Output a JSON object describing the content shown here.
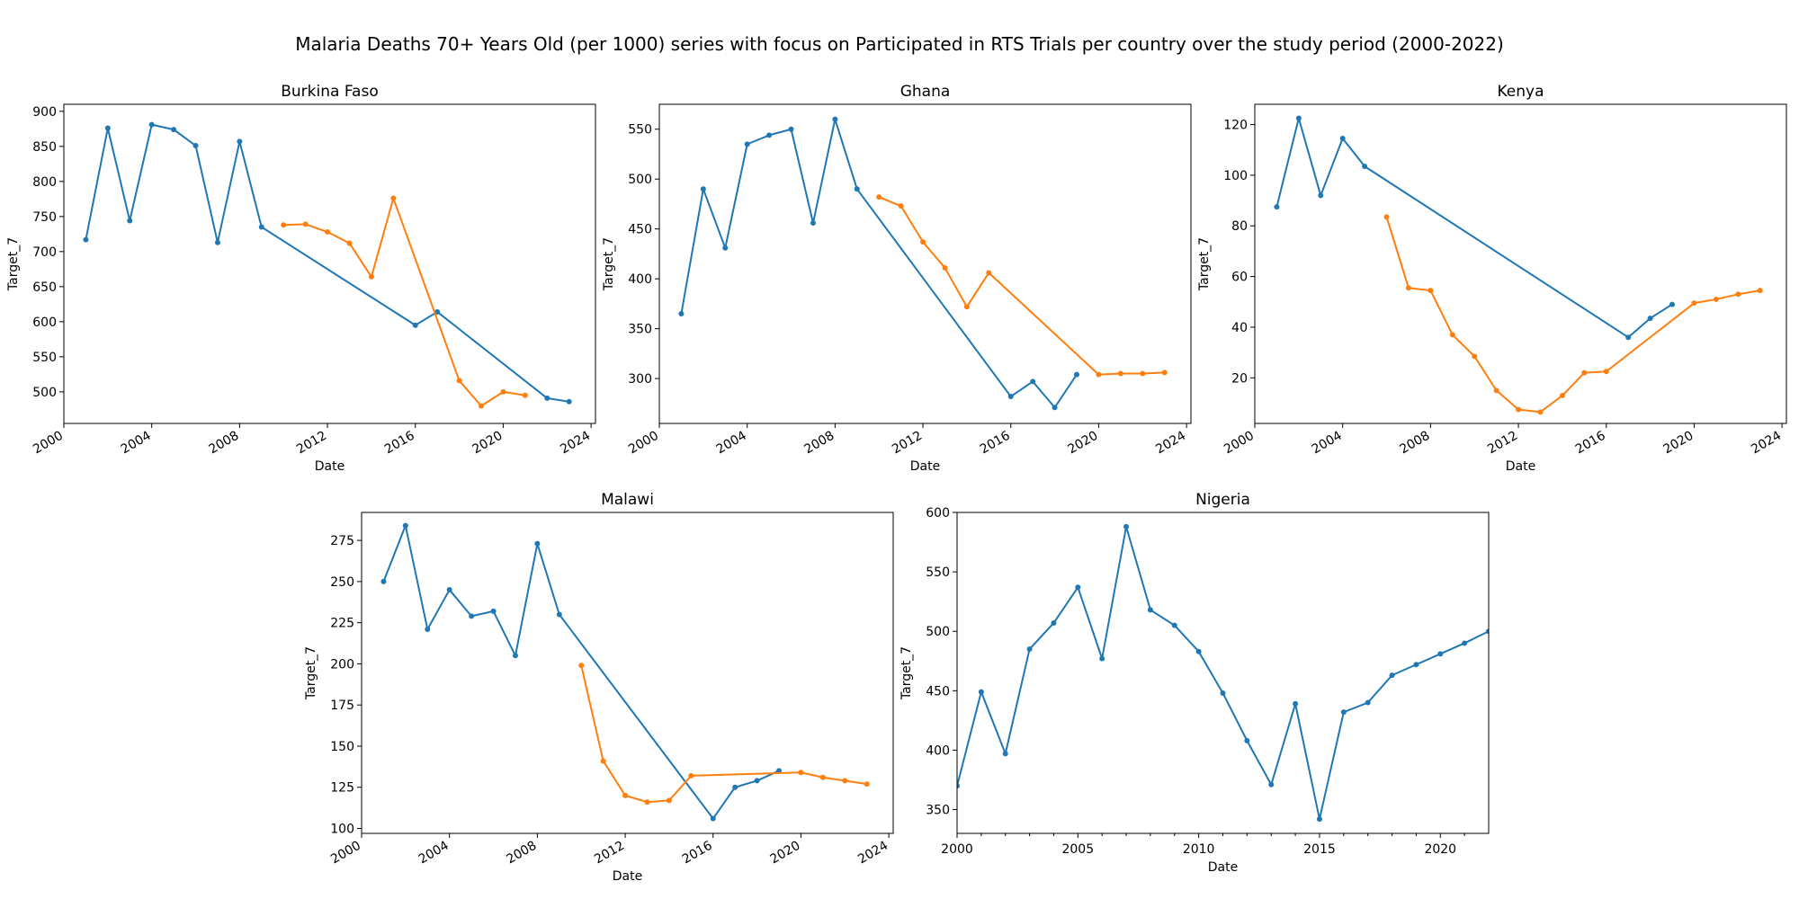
{
  "figure": {
    "suptitle": "Malaria Deaths 70+ Years Old (per 1000) series with focus on Participated in RTS Trials per country over the study period (2000-2022)"
  },
  "colors": {
    "series_a": "#1f77b4",
    "series_b": "#ff7f0e"
  },
  "chart_data": [
    {
      "type": "line",
      "title": "Burkina Faso",
      "xlabel": "Date",
      "ylabel": "Target_7",
      "xlim": [
        2000,
        2024.2
      ],
      "ylim": [
        455,
        910
      ],
      "xticks": [
        2000,
        2004,
        2008,
        2012,
        2016,
        2020,
        2024
      ],
      "xtick_labels": [
        "2000",
        "2004",
        "2008",
        "2012",
        "2016",
        "2020",
        "2024"
      ],
      "yticks": [
        500,
        550,
        600,
        650,
        700,
        750,
        800,
        850,
        900
      ],
      "ytick_labels": [
        "500",
        "550",
        "600",
        "650",
        "700",
        "750",
        "800",
        "850",
        "900"
      ],
      "x_tick_rotation": 30,
      "series": [
        {
          "color": "#1f77b4",
          "x": [
            2001,
            2002,
            2003,
            2004,
            2005,
            2006,
            2007,
            2008,
            2009,
            2016,
            2017,
            2022,
            2023
          ],
          "y": [
            717,
            876,
            744,
            881,
            874,
            851,
            713,
            857,
            735,
            595,
            614,
            491,
            486
          ]
        },
        {
          "color": "#ff7f0e",
          "x": [
            2010,
            2011,
            2012,
            2013,
            2014,
            2015,
            2018,
            2019,
            2020,
            2021
          ],
          "y": [
            738,
            739,
            728,
            712,
            664,
            776,
            516,
            480,
            500,
            495
          ]
        }
      ]
    },
    {
      "type": "line",
      "title": "Ghana",
      "xlabel": "Date",
      "ylabel": "Target_7",
      "xlim": [
        2000,
        2024.2
      ],
      "ylim": [
        255,
        575
      ],
      "xticks": [
        2000,
        2004,
        2008,
        2012,
        2016,
        2020,
        2024
      ],
      "xtick_labels": [
        "2000",
        "2004",
        "2008",
        "2012",
        "2016",
        "2020",
        "2024"
      ],
      "yticks": [
        300,
        350,
        400,
        450,
        500,
        550
      ],
      "ytick_labels": [
        "300",
        "350",
        "400",
        "450",
        "500",
        "550"
      ],
      "x_tick_rotation": 30,
      "series": [
        {
          "color": "#1f77b4",
          "x": [
            2001,
            2002,
            2003,
            2004,
            2005,
            2006,
            2007,
            2008,
            2009,
            2016,
            2017,
            2018,
            2019
          ],
          "y": [
            365,
            490,
            431,
            535,
            544,
            550,
            456,
            560,
            490,
            282,
            297,
            271,
            304
          ]
        },
        {
          "color": "#ff7f0e",
          "x": [
            2010,
            2011,
            2012,
            2013,
            2014,
            2015,
            2020,
            2021,
            2022,
            2023
          ],
          "y": [
            482,
            473,
            437,
            411,
            372,
            406,
            304,
            305,
            305,
            306
          ]
        }
      ]
    },
    {
      "type": "line",
      "title": "Kenya",
      "xlabel": "Date",
      "ylabel": "Target_7",
      "xlim": [
        2000,
        2024.2
      ],
      "ylim": [
        2,
        128
      ],
      "xticks": [
        2000,
        2004,
        2008,
        2012,
        2016,
        2020,
        2024
      ],
      "xtick_labels": [
        "2000",
        "2004",
        "2008",
        "2012",
        "2016",
        "2020",
        "2024"
      ],
      "yticks": [
        20,
        40,
        60,
        80,
        100,
        120
      ],
      "ytick_labels": [
        "20",
        "40",
        "60",
        "80",
        "100",
        "120"
      ],
      "x_tick_rotation": 30,
      "series": [
        {
          "color": "#1f77b4",
          "x": [
            2001,
            2002,
            2003,
            2004,
            2005,
            2017,
            2018,
            2019
          ],
          "y": [
            87.5,
            122.5,
            92,
            114.5,
            103.5,
            36,
            43.5,
            49
          ]
        },
        {
          "color": "#ff7f0e",
          "x": [
            2006,
            2007,
            2008,
            2009,
            2010,
            2011,
            2012,
            2013,
            2014,
            2015,
            2016,
            2020,
            2021,
            2022,
            2023
          ],
          "y": [
            83.5,
            55.5,
            54.5,
            37,
            28.5,
            15,
            7.5,
            6.5,
            13,
            22,
            22.5,
            49.5,
            51,
            53,
            54.5
          ]
        }
      ]
    },
    {
      "type": "line",
      "title": "Malawi",
      "xlabel": "Date",
      "ylabel": "Target_7",
      "xlim": [
        2000,
        2024.2
      ],
      "ylim": [
        97,
        292
      ],
      "xticks": [
        2000,
        2004,
        2008,
        2012,
        2016,
        2020,
        2024
      ],
      "xtick_labels": [
        "2000",
        "2004",
        "2008",
        "2012",
        "2016",
        "2020",
        "2024"
      ],
      "yticks": [
        100,
        125,
        150,
        175,
        200,
        225,
        250,
        275
      ],
      "ytick_labels": [
        "100",
        "125",
        "150",
        "175",
        "200",
        "225",
        "250",
        "275"
      ],
      "x_tick_rotation": 30,
      "series": [
        {
          "color": "#1f77b4",
          "x": [
            2001,
            2002,
            2003,
            2004,
            2005,
            2006,
            2007,
            2008,
            2009,
            2016,
            2017,
            2018,
            2019
          ],
          "y": [
            250,
            284,
            221,
            245,
            229,
            232,
            205,
            273,
            230,
            106,
            125,
            129,
            135
          ]
        },
        {
          "color": "#ff7f0e",
          "x": [
            2010,
            2011,
            2012,
            2013,
            2014,
            2015,
            2020,
            2021,
            2022,
            2023
          ],
          "y": [
            199,
            141,
            120,
            116,
            117,
            132,
            134,
            131,
            129,
            127
          ]
        }
      ]
    },
    {
      "type": "line",
      "title": "Nigeria",
      "xlabel": "Date",
      "ylabel": "Target_7",
      "xlim": [
        2000,
        2022
      ],
      "ylim": [
        330,
        600
      ],
      "xticks": [
        2000,
        2005,
        2010,
        2015,
        2020
      ],
      "xtick_labels": [
        "2000",
        "2005",
        "2010",
        "2015",
        "2020"
      ],
      "xticks_minor": [
        2001,
        2002,
        2003,
        2004,
        2006,
        2007,
        2008,
        2009,
        2011,
        2012,
        2013,
        2014,
        2016,
        2017,
        2018,
        2019,
        2021
      ],
      "yticks": [
        350,
        400,
        450,
        500,
        550,
        600
      ],
      "ytick_labels": [
        "350",
        "400",
        "450",
        "500",
        "550",
        "600"
      ],
      "x_tick_rotation": 0,
      "series": [
        {
          "color": "#1f77b4",
          "x": [
            2000,
            2001,
            2002,
            2003,
            2004,
            2005,
            2006,
            2007,
            2008,
            2009,
            2010,
            2011,
            2012,
            2013,
            2014,
            2015,
            2016,
            2017,
            2018,
            2019,
            2020,
            2021,
            2022
          ],
          "y": [
            370,
            449,
            397,
            485,
            507,
            537,
            477,
            588,
            518,
            505,
            483,
            448,
            408,
            371,
            439,
            342,
            432,
            440,
            463,
            472,
            481,
            490,
            500
          ]
        }
      ]
    }
  ]
}
